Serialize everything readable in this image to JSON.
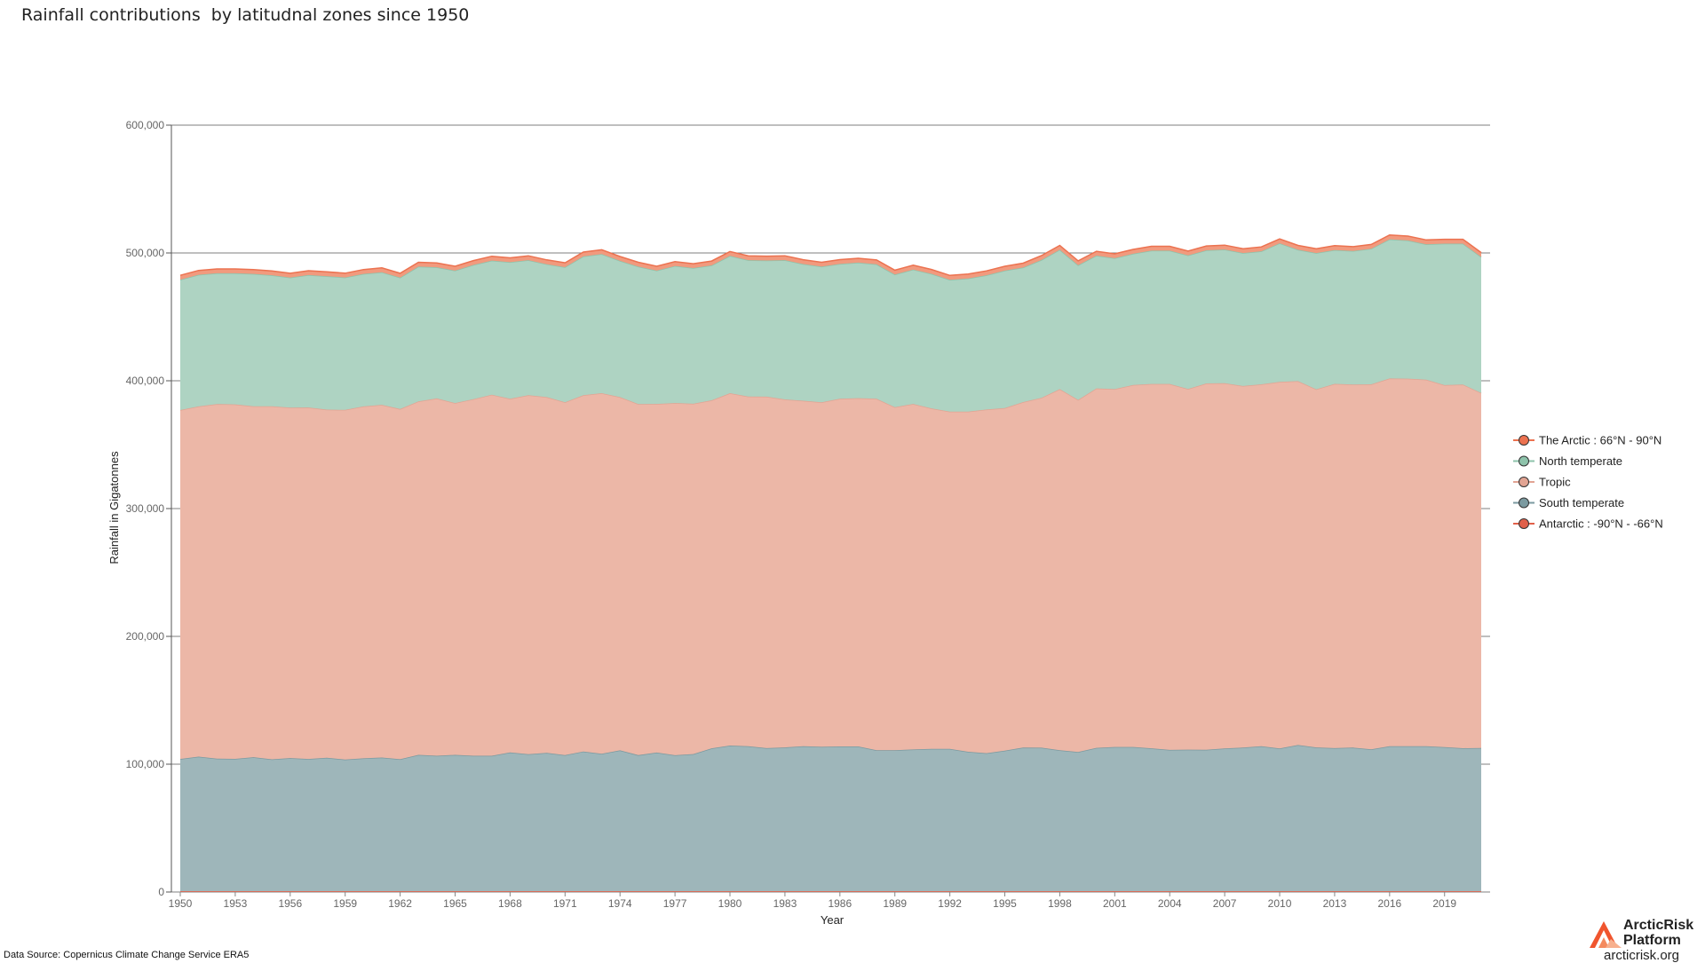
{
  "title": "Rainfall contributions  by latitudnal zones since 1950",
  "source_note": "Data Source: Copernicus Climate Change Service ERA5",
  "logo": {
    "name_line1": "ArcticRisk",
    "name_line2": "Platform",
    "url": "arcticrisk.org"
  },
  "chart_data": {
    "type": "area",
    "stacked": true,
    "xlabel": "Year",
    "ylabel": "Rainfall in Gigatonnes",
    "ylim": [
      0,
      600000
    ],
    "y_ticks": [
      "0",
      "100,000",
      "200,000",
      "300,000",
      "400,000",
      "500,000",
      "600,000"
    ],
    "x_ticks": [
      "1950",
      "1953",
      "1956",
      "1959",
      "1962",
      "1965",
      "1968",
      "1971",
      "1974",
      "1977",
      "1980",
      "1983",
      "1986",
      "1989",
      "1992",
      "1995",
      "1998",
      "2001",
      "2004",
      "2007",
      "2010",
      "2013",
      "2016",
      "2019"
    ],
    "x": [
      1950,
      1951,
      1952,
      1953,
      1954,
      1955,
      1956,
      1957,
      1958,
      1959,
      1960,
      1961,
      1962,
      1963,
      1964,
      1965,
      1966,
      1967,
      1968,
      1969,
      1970,
      1971,
      1972,
      1973,
      1974,
      1975,
      1976,
      1977,
      1978,
      1979,
      1980,
      1981,
      1982,
      1983,
      1984,
      1985,
      1986,
      1987,
      1988,
      1989,
      1990,
      1991,
      1992,
      1993,
      1994,
      1995,
      1996,
      1997,
      1998,
      1999,
      2000,
      2001,
      2002,
      2003,
      2004,
      2005,
      2006,
      2007,
      2008,
      2009,
      2010,
      2011,
      2012,
      2013,
      2014,
      2015,
      2016,
      2017,
      2018,
      2019,
      2020,
      2021
    ],
    "grid": true,
    "legend_position": "right",
    "series": [
      {
        "name": "Antarctic : -90°N - -66°N",
        "fill": "#d9705c",
        "stroke": "#e0604a",
        "values": [
          600,
          600,
          600,
          600,
          600,
          600,
          600,
          600,
          600,
          600,
          600,
          600,
          600,
          600,
          600,
          600,
          600,
          600,
          600,
          600,
          600,
          600,
          600,
          600,
          600,
          600,
          600,
          600,
          600,
          600,
          600,
          600,
          600,
          600,
          600,
          600,
          600,
          600,
          600,
          600,
          600,
          600,
          600,
          600,
          600,
          600,
          600,
          600,
          600,
          600,
          600,
          600,
          600,
          600,
          600,
          600,
          600,
          600,
          600,
          600,
          600,
          600,
          600,
          600,
          600,
          600,
          600,
          600,
          600,
          600,
          600,
          600
        ]
      },
      {
        "name": "South temperate",
        "fill": "#9eb6ba",
        "stroke": "#7b9aa0",
        "values": [
          103500,
          105300,
          103700,
          103600,
          104900,
          103200,
          104200,
          103500,
          104500,
          103000,
          104000,
          104600,
          103300,
          106700,
          106000,
          106700,
          106000,
          106000,
          108600,
          107200,
          108300,
          106500,
          109300,
          107600,
          110200,
          106500,
          108500,
          106400,
          107300,
          111800,
          114000,
          113400,
          112000,
          112500,
          113500,
          113000,
          113300,
          113300,
          110300,
          110400,
          110900,
          111400,
          111400,
          109100,
          108000,
          110000,
          112400,
          112300,
          110300,
          108900,
          112200,
          112900,
          112900,
          111800,
          110600,
          110800,
          110700,
          111700,
          112400,
          113400,
          111700,
          114400,
          112500,
          112000,
          112400,
          111000,
          113500,
          113400,
          113400,
          112700,
          111900,
          112100
        ]
      },
      {
        "name": "Tropic",
        "fill": "#ecb7a7",
        "stroke": "#e2a493",
        "values": [
          273000,
          274000,
          277500,
          277300,
          274500,
          276200,
          274200,
          275000,
          272300,
          273600,
          275300,
          276000,
          274000,
          276600,
          279600,
          275300,
          279000,
          282500,
          276800,
          280900,
          278300,
          276100,
          278800,
          282100,
          276400,
          274700,
          272800,
          275600,
          274100,
          272300,
          275700,
          273700,
          275000,
          272300,
          270300,
          269500,
          272000,
          272500,
          275000,
          268400,
          270400,
          266400,
          263800,
          266200,
          268900,
          268100,
          270300,
          273800,
          282600,
          275600,
          281200,
          280000,
          283200,
          285100,
          286300,
          282200,
          286600,
          285800,
          282900,
          283200,
          286800,
          284700,
          280200,
          285000,
          284100,
          285600,
          287700,
          287700,
          286800,
          283300,
          284600,
          277800
        ]
      },
      {
        "name": "North temperate",
        "fill": "#aed3c2",
        "stroke": "#8ec3ab",
        "values": [
          102000,
          103000,
          102300,
          102600,
          103600,
          102600,
          101700,
          103600,
          104400,
          103600,
          103700,
          103700,
          102800,
          105400,
          102600,
          103600,
          105000,
          104900,
          106800,
          105700,
          104000,
          105700,
          108600,
          108800,
          106600,
          107500,
          104300,
          107200,
          106200,
          105600,
          107400,
          106700,
          106500,
          109000,
          106900,
          106200,
          105500,
          106000,
          105200,
          103700,
          105100,
          105300,
          103200,
          104200,
          105100,
          107500,
          105300,
          107800,
          109000,
          105300,
          103900,
          102400,
          102700,
          104300,
          104300,
          104500,
          104200,
          104600,
          104000,
          104100,
          108500,
          102800,
          106600,
          104700,
          104400,
          106100,
          108900,
          108100,
          106000,
          110700,
          110200,
          106400
        ]
      },
      {
        "name": "The Arctic : 66°N - 90°N",
        "fill": "#f19a7e",
        "stroke": "#ec7250",
        "values": [
          3400,
          3400,
          3400,
          3400,
          3400,
          3400,
          3400,
          3400,
          3400,
          3400,
          3400,
          3400,
          3400,
          3400,
          3400,
          3400,
          3400,
          3400,
          3400,
          3400,
          3400,
          3400,
          3400,
          3400,
          3400,
          3400,
          3400,
          3400,
          3400,
          3400,
          3400,
          3400,
          3400,
          3400,
          3400,
          3400,
          3400,
          3400,
          3400,
          3400,
          3400,
          3400,
          3400,
          3400,
          3400,
          3400,
          3400,
          3400,
          3400,
          3400,
          3400,
          3400,
          3400,
          3400,
          3400,
          3400,
          3400,
          3400,
          3400,
          3400,
          3400,
          3400,
          3400,
          3400,
          3400,
          3400,
          3400,
          3400,
          3400,
          3400,
          3400,
          3400
        ]
      }
    ],
    "legend_order": [
      "The Arctic : 66°N - 90°N",
      "North temperate",
      "Tropic",
      "South temperate",
      "Antarctic : -90°N - -66°N"
    ]
  }
}
